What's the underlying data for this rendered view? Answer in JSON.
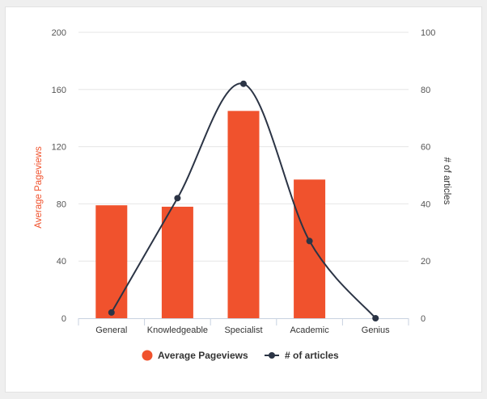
{
  "chart_data": {
    "type": "bar",
    "categories": [
      "General",
      "Knowledgeable",
      "Specialist",
      "Academic",
      "Genius"
    ],
    "series": [
      {
        "name": "Average Pageviews",
        "type": "bar",
        "axis": "left",
        "color": "#f0522d",
        "values": [
          79,
          78,
          145,
          97,
          0
        ]
      },
      {
        "name": "# of articles",
        "type": "line",
        "smooth": true,
        "axis": "right",
        "color": "#2b3445",
        "values": [
          2,
          42,
          82,
          27,
          0
        ]
      }
    ],
    "ylabel": "Average Pageviews",
    "ylabel_right": "# of articles",
    "ylim": [
      0,
      200
    ],
    "ylim_right": [
      0,
      100
    ],
    "yticks": [
      "0",
      "40",
      "80",
      "120",
      "160",
      "200"
    ],
    "yticks_right": [
      "0",
      "20",
      "40",
      "60",
      "80",
      "100"
    ],
    "grid": true,
    "legend": "bottom-center"
  }
}
